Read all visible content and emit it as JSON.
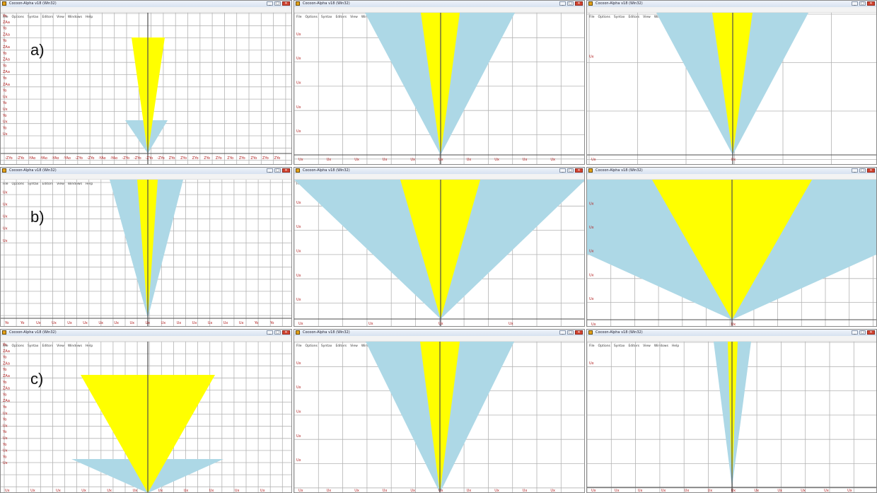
{
  "window": {
    "title": "Cocoon-Alpha v18 (Win32)",
    "menu": [
      "File",
      "Options",
      "Syntax",
      "Editors",
      "View",
      "Windows",
      "Help"
    ],
    "controls": {
      "minimize": "_",
      "maximize": "□",
      "close": "✕"
    }
  },
  "colors": {
    "inner_cone": "#ffff00",
    "outer_cone": "#add8e6",
    "grid": "#b3b3b3",
    "axis": "#4d4d4d",
    "tick_label": "#b22222"
  },
  "panels": [
    {
      "row": 0,
      "col": 0,
      "label": "a)",
      "y_ticks": [
        "Yo",
        "ZAa",
        "Yo",
        "ZAa",
        "Yo",
        "ZAa",
        "Yo",
        "ZAa",
        "Yo",
        "ZAa",
        "Yo",
        "ZAa",
        "Yo",
        "Ux",
        "Yo",
        "Ux",
        "Yo",
        "Ux",
        "Yo",
        "Ux"
      ],
      "x_ticks": [
        "-ZYo",
        "-ZYo",
        "-YAo",
        "-YAo",
        "-YAo",
        "-YAo",
        "-ZYo",
        "-ZYo",
        "-YAo",
        "-YAo",
        "-ZYo",
        "-ZYo",
        "-ZYo",
        "-ZYo",
        "ZYo",
        "ZYo",
        "ZYo",
        "ZYo",
        "ZYo",
        "ZYo",
        "ZYo",
        "ZYo",
        "ZYo",
        "ZYo"
      ]
    },
    {
      "row": 0,
      "col": 1,
      "label": "",
      "y_ticks": [
        "Ux",
        "Ux",
        "Ux",
        "Ux",
        "Ux"
      ],
      "x_ticks": [
        "Ux",
        "Ux",
        "Ux",
        "Ux",
        "Ux",
        "Ux",
        "Ux",
        "Ux",
        "Ux",
        "Ux"
      ]
    },
    {
      "row": 0,
      "col": 2,
      "label": "",
      "y_ticks": [
        "Ux"
      ],
      "x_ticks": [
        "Ux",
        "Ux"
      ]
    },
    {
      "row": 1,
      "col": 0,
      "label": "b)",
      "y_ticks": [
        "Ux",
        "Ux",
        "Ux",
        "Ux",
        "Ux"
      ],
      "x_ticks": [
        "Yo",
        "Yo",
        "Ux",
        "Ux",
        "Ux",
        "Ux",
        "Ux",
        "Ux",
        "Ux",
        "Ux",
        "Ux",
        "Ux",
        "Ux",
        "Ux",
        "Ux",
        "Ux",
        "Yo",
        "Yo"
      ]
    },
    {
      "row": 1,
      "col": 1,
      "label": "",
      "y_ticks": [
        "Ux",
        "Ux",
        "Ux",
        "Ux",
        "Ux"
      ],
      "x_ticks": [
        "Ux",
        "Ux",
        "Ux",
        "Ux"
      ]
    },
    {
      "row": 1,
      "col": 2,
      "label": "",
      "y_ticks": [
        "Ux",
        "Ux",
        "Ux",
        "Ux",
        "Ux"
      ],
      "x_ticks": [
        "Ux",
        "Ux"
      ]
    },
    {
      "row": 2,
      "col": 0,
      "label": "c)",
      "y_ticks": [
        "Yo",
        "ZAa",
        "Yo",
        "ZAa",
        "Yo",
        "ZAa",
        "Yo",
        "ZAa",
        "Yo",
        "ZAa",
        "Yo",
        "Ux",
        "Yo",
        "Ux",
        "Yo",
        "Ux",
        "Yo",
        "Ux",
        "Yo",
        "Ux"
      ],
      "x_ticks": [
        "Ux",
        "Ux",
        "Ux",
        "Ux",
        "Ux",
        "Ux",
        "Ux",
        "Ux",
        "Ux",
        "Ux",
        "Ux"
      ]
    },
    {
      "row": 2,
      "col": 1,
      "label": "",
      "y_ticks": [
        "Ux",
        "Ux",
        "Ux",
        "Ux",
        "Ux"
      ],
      "x_ticks": [
        "Ux",
        "Ux",
        "Ux",
        "Ux",
        "Ux",
        "Ux",
        "Ux",
        "Ux",
        "Ux",
        "Ux"
      ]
    },
    {
      "row": 2,
      "col": 2,
      "label": "",
      "y_ticks": [
        "Ux"
      ],
      "x_ticks": [
        "Ux",
        "Ux",
        "Ux",
        "Ux",
        "Ux",
        "Ux",
        "Ux",
        "Ux",
        "Ux",
        "Ux",
        "Ux",
        "Ux"
      ]
    }
  ]
}
